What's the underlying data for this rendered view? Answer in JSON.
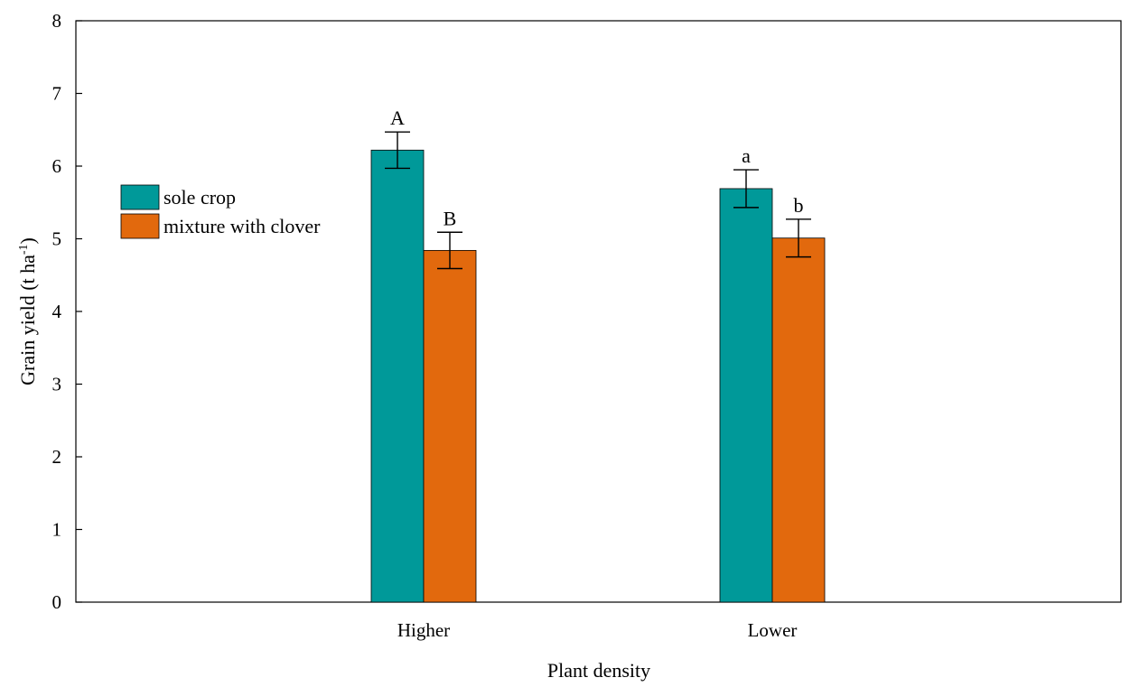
{
  "chart_data": {
    "type": "bar",
    "xlabel": "Plant density",
    "ylabel": "Grain yield (t ha",
    "ylabel_sup": "-1",
    "ylabel_close": ")",
    "ylim": [
      0,
      8
    ],
    "yticks": [
      "0",
      "1",
      "2",
      "3",
      "4",
      "5",
      "6",
      "7",
      "8"
    ],
    "categories": [
      "Higher",
      "Lower"
    ],
    "legend_position": "left",
    "grid": false,
    "series": [
      {
        "name": "sole crop",
        "color": "#009999",
        "values": [
          6.22,
          5.69
        ],
        "errors": [
          0.25,
          0.26
        ],
        "labels": [
          "A",
          "a"
        ]
      },
      {
        "name": "mixture with clover",
        "color": "#e2690d",
        "values": [
          4.84,
          5.01
        ],
        "errors": [
          0.25,
          0.26
        ],
        "labels": [
          "B",
          "b"
        ]
      }
    ]
  }
}
